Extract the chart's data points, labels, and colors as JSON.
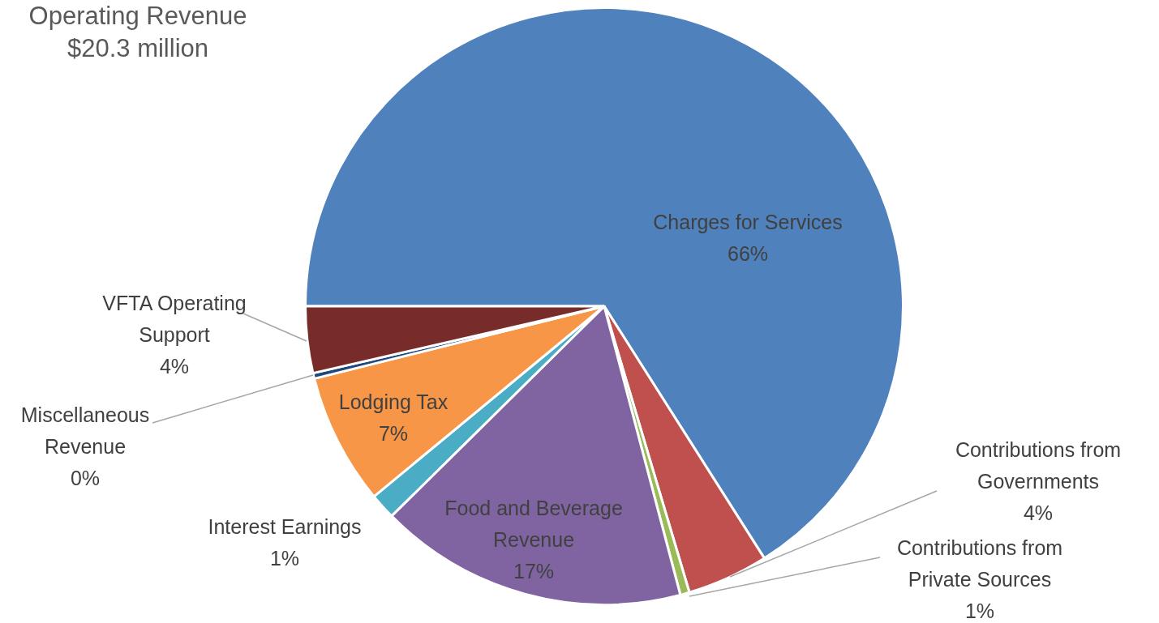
{
  "chart_data": {
    "type": "pie",
    "title": "Operating Revenue",
    "subtitle": "$20.3 million",
    "categories": [
      "Charges for Services",
      "Contributions from Governments",
      "Contributions from Private Sources",
      "Food and Beverage Revenue",
      "Interest Earnings",
      "Lodging Tax",
      "Miscellaneous Revenue",
      "VFTA Operating Support"
    ],
    "values": [
      66,
      4.4,
      0.5,
      16.7,
      1.4,
      7.1,
      0.3,
      3.6
    ],
    "value_labels": [
      "66%",
      "4%",
      "1%",
      "17%",
      "1%",
      "7%",
      "0%",
      "4%"
    ],
    "colors": [
      "#4f81bd",
      "#c0504d",
      "#9bbb59",
      "#8064a2",
      "#4bacc6",
      "#f79646",
      "#1f497d",
      "#772c2a"
    ],
    "legend": false
  }
}
